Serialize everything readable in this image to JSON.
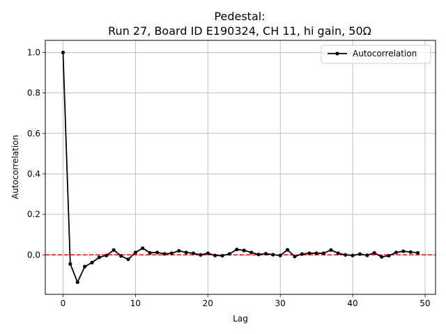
{
  "chart_data": {
    "type": "line",
    "title": "Pedestal:",
    "subtitle": "Run 27, Board ID E190324, CH 11, hi gain, 50Ω",
    "xlabel": "Lag",
    "ylabel": "Autocorrelation",
    "xlim": [
      -2.45,
      51.45
    ],
    "ylim": [
      -0.195,
      1.06
    ],
    "x_ticks": [
      0,
      10,
      20,
      30,
      40,
      50
    ],
    "x_tick_labels": [
      "0",
      "10",
      "20",
      "30",
      "40",
      "50"
    ],
    "y_ticks": [
      0.0,
      0.2,
      0.4,
      0.6,
      0.8,
      1.0
    ],
    "y_tick_labels": [
      "0.0",
      "0.2",
      "0.4",
      "0.6",
      "0.8",
      "1.0"
    ],
    "grid": true,
    "legend_position": "top-right",
    "reference_line": {
      "y": 0,
      "color": "#ff0000",
      "style": "dashed"
    },
    "series": [
      {
        "name": "Autocorrelation",
        "color": "#000000",
        "marker": "dot",
        "x": [
          0,
          1,
          2,
          3,
          4,
          5,
          6,
          7,
          8,
          9,
          10,
          11,
          12,
          13,
          14,
          15,
          16,
          17,
          18,
          19,
          20,
          21,
          22,
          23,
          24,
          25,
          26,
          27,
          28,
          29,
          30,
          31,
          32,
          33,
          34,
          35,
          36,
          37,
          38,
          39,
          40,
          41,
          42,
          43,
          44,
          45,
          46,
          47,
          48,
          49
        ],
        "values": [
          1.0,
          -0.045,
          -0.135,
          -0.058,
          -0.038,
          -0.012,
          -0.003,
          0.024,
          -0.005,
          -0.022,
          0.012,
          0.033,
          0.01,
          0.012,
          0.005,
          0.008,
          0.02,
          0.012,
          0.008,
          0.0,
          0.008,
          -0.003,
          -0.004,
          0.005,
          0.027,
          0.022,
          0.012,
          0.002,
          0.006,
          0.001,
          -0.003,
          0.025,
          -0.008,
          0.004,
          0.008,
          0.008,
          0.008,
          0.024,
          0.008,
          0.0,
          -0.003,
          0.004,
          -0.002,
          0.01,
          -0.01,
          -0.004,
          0.012,
          0.018,
          0.014,
          0.01
        ]
      }
    ]
  }
}
